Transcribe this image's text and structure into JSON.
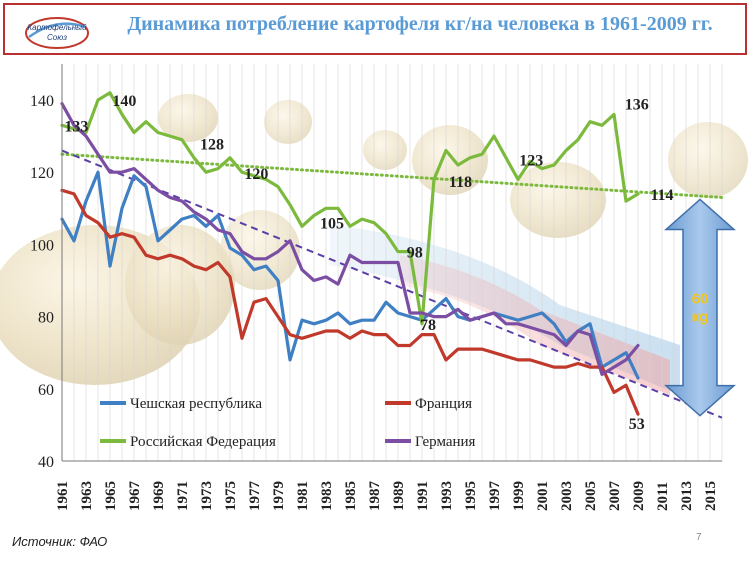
{
  "slide": {
    "title": "Динамика потребление картофеля кг/на человека в 1961-2009 гг.",
    "source": "Источник: ФАО",
    "page_number": "7",
    "logo_text": [
      "Картофельный",
      "Союз"
    ]
  },
  "chart_data": {
    "type": "line",
    "title": "Динамика потребление картофеля кг/на человека в 1961-2009 гг.",
    "xlabel": "",
    "ylabel": "",
    "xlim": [
      1961,
      2016
    ],
    "ylim": [
      40,
      150
    ],
    "yticks": [
      40,
      60,
      80,
      100,
      120,
      140
    ],
    "xticks": [
      1961,
      1963,
      1965,
      1967,
      1969,
      1971,
      1973,
      1975,
      1977,
      1979,
      1981,
      1983,
      1985,
      1987,
      1989,
      1991,
      1993,
      1995,
      1997,
      1999,
      2001,
      2003,
      2005,
      2007,
      2009,
      2011,
      2013,
      2015
    ],
    "grid": "vertical",
    "legend_position": "bottom-left",
    "series": [
      {
        "name": "Чешская республика",
        "color": "#3f7fc3",
        "x": [
          1961,
          1962,
          1963,
          1964,
          1965,
          1966,
          1967,
          1968,
          1969,
          1970,
          1971,
          1972,
          1973,
          1974,
          1975,
          1976,
          1977,
          1978,
          1979,
          1980,
          1981,
          1982,
          1983,
          1984,
          1985,
          1986,
          1987,
          1988,
          1989,
          1990,
          1991,
          1992,
          1993,
          1994,
          1995,
          1996,
          1997,
          1998,
          1999,
          2000,
          2001,
          2002,
          2003,
          2004,
          2005,
          2006,
          2007,
          2008,
          2009
        ],
        "values": [
          107,
          101,
          112,
          120,
          94,
          110,
          119,
          116,
          101,
          104,
          107,
          108,
          105,
          108,
          99,
          97,
          93,
          94,
          90,
          68,
          79,
          78,
          79,
          81,
          78,
          79,
          79,
          84,
          81,
          80,
          79,
          82,
          85,
          80,
          79,
          80,
          81,
          80,
          79,
          80,
          81,
          78,
          73,
          76,
          78,
          66,
          68,
          70,
          63
        ]
      },
      {
        "name": "Франция",
        "color": "#c0392b",
        "x": [
          1961,
          1962,
          1963,
          1964,
          1965,
          1966,
          1967,
          1968,
          1969,
          1970,
          1971,
          1972,
          1973,
          1974,
          1975,
          1976,
          1977,
          1978,
          1979,
          1980,
          1981,
          1982,
          1983,
          1984,
          1985,
          1986,
          1987,
          1988,
          1989,
          1990,
          1991,
          1992,
          1993,
          1994,
          1995,
          1996,
          1997,
          1998,
          1999,
          2000,
          2001,
          2002,
          2003,
          2004,
          2005,
          2006,
          2007,
          2008,
          2009
        ],
        "values": [
          115,
          114,
          108,
          106,
          102,
          103,
          102,
          97,
          96,
          97,
          96,
          94,
          93,
          95,
          91,
          74,
          84,
          85,
          80,
          75,
          74,
          75,
          76,
          76,
          74,
          76,
          75,
          75,
          72,
          72,
          75,
          75,
          68,
          71,
          71,
          71,
          70,
          69,
          68,
          68,
          67,
          66,
          66,
          67,
          66,
          66,
          59,
          61,
          53
        ]
      },
      {
        "name": "Российская Федерация",
        "color": "#7cba3d",
        "x": [
          1961,
          1962,
          1963,
          1964,
          1965,
          1966,
          1967,
          1968,
          1969,
          1970,
          1971,
          1972,
          1973,
          1974,
          1975,
          1976,
          1977,
          1978,
          1979,
          1980,
          1981,
          1982,
          1983,
          1984,
          1985,
          1986,
          1987,
          1988,
          1989,
          1990,
          1991,
          1992,
          1993,
          1994,
          1995,
          1996,
          1997,
          1998,
          1999,
          2000,
          2001,
          2002,
          2003,
          2004,
          2005,
          2006,
          2007,
          2008,
          2009
        ],
        "values": [
          133,
          132,
          131,
          140,
          142,
          136,
          131,
          134,
          131,
          130,
          129,
          124,
          120,
          121,
          124,
          120,
          119,
          118,
          116,
          111,
          105,
          108,
          110,
          110,
          105,
          107,
          106,
          103,
          98,
          98,
          78,
          118,
          126,
          122,
          124,
          125,
          130,
          124,
          118,
          123,
          121,
          122,
          126,
          129,
          134,
          133,
          136,
          112,
          114
        ]
      },
      {
        "name": "Германия",
        "color": "#7b4ea3",
        "x": [
          1961,
          1962,
          1963,
          1964,
          1965,
          1966,
          1967,
          1968,
          1969,
          1970,
          1971,
          1972,
          1973,
          1974,
          1975,
          1976,
          1977,
          1978,
          1979,
          1980,
          1981,
          1982,
          1983,
          1984,
          1985,
          1986,
          1987,
          1988,
          1989,
          1990,
          1991,
          1992,
          1993,
          1994,
          1995,
          1996,
          1997,
          1998,
          1999,
          2000,
          2001,
          2002,
          2003,
          2004,
          2005,
          2006,
          2007,
          2008,
          2009
        ],
        "values": [
          139,
          133,
          130,
          125,
          120,
          120,
          121,
          118,
          115,
          113,
          112,
          109,
          107,
          104,
          103,
          98,
          96,
          96,
          98,
          101,
          93,
          90,
          91,
          89,
          97,
          95,
          95,
          95,
          95,
          81,
          81,
          80,
          80,
          82,
          79,
          80,
          81,
          78,
          78,
          77,
          76,
          75,
          72,
          76,
          75,
          64,
          66,
          68,
          72
        ]
      }
    ],
    "trendlines": [
      {
        "color": "#7cba3d",
        "style": "dotted",
        "x": [
          1961,
          2016
        ],
        "values": [
          125,
          113
        ]
      },
      {
        "color": "#5b3fa6",
        "style": "dashed",
        "x": [
          1961,
          2016
        ],
        "values": [
          126,
          52
        ]
      }
    ],
    "data_labels": [
      {
        "text": "133",
        "x": 1962.2,
        "y": 133
      },
      {
        "text": "140",
        "x": 1966.2,
        "y": 140
      },
      {
        "text": "128",
        "x": 1973.5,
        "y": 128
      },
      {
        "text": "120",
        "x": 1977.2,
        "y": 119.8
      },
      {
        "text": "105",
        "x": 1983.5,
        "y": 106
      },
      {
        "text": "98",
        "x": 1990.4,
        "y": 98
      },
      {
        "text": "78",
        "x": 1991.5,
        "y": 78
      },
      {
        "text": "118",
        "x": 1994.2,
        "y": 117.5
      },
      {
        "text": "123",
        "x": 2000.1,
        "y": 123.5
      },
      {
        "text": "136",
        "x": 2008.9,
        "y": 139
      },
      {
        "text": "114",
        "x": 2011.0,
        "y": 114
      },
      {
        "text": "53",
        "x": 2008.9,
        "y": 50.5
      }
    ],
    "annotation": {
      "text_line1": "60",
      "text_line2": "кg",
      "arrow_from": 52,
      "arrow_to": 113,
      "arrow_x": 2015
    }
  }
}
